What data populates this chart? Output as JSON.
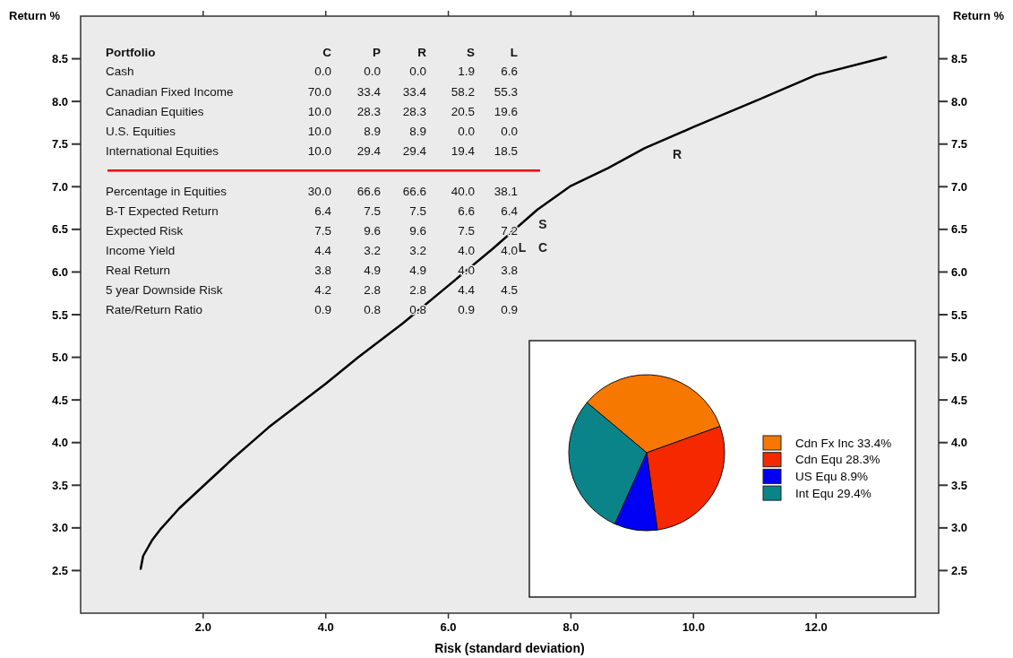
{
  "chart_data": [
    {
      "type": "line",
      "xlabel": "Risk (standard deviation)",
      "ylabel": "Return %",
      "y2label": "Return %",
      "xlim": [
        0,
        14
      ],
      "ylim": [
        2,
        9
      ],
      "y2lim": [
        2,
        9
      ],
      "xticks": [
        {
          "value": 2,
          "label": "2.0"
        },
        {
          "value": 4,
          "label": "4.0"
        },
        {
          "value": 6,
          "label": "6.0"
        },
        {
          "value": 8,
          "label": "8.0"
        },
        {
          "value": 10,
          "label": "10.0"
        },
        {
          "value": 12,
          "label": "12.0"
        }
      ],
      "yticks": [
        {
          "value": 2.5,
          "label": "2.5"
        },
        {
          "value": 3,
          "label": "3.0"
        },
        {
          "value": 3.5,
          "label": "3.5"
        },
        {
          "value": 4,
          "label": "4.0"
        },
        {
          "value": 4.5,
          "label": "4.5"
        },
        {
          "value": 5,
          "label": "5.0"
        },
        {
          "value": 5.5,
          "label": "5.5"
        },
        {
          "value": 6,
          "label": "6.0"
        },
        {
          "value": 6.5,
          "label": "6.5"
        },
        {
          "value": 7,
          "label": "7.0"
        },
        {
          "value": 7.5,
          "label": "7.5"
        },
        {
          "value": 8,
          "label": "8.0"
        },
        {
          "value": 8.5,
          "label": "8.5"
        }
      ],
      "y2ticks": [
        {
          "value": 2.5,
          "label": "2.5"
        },
        {
          "value": 3,
          "label": "3.0"
        },
        {
          "value": 3.5,
          "label": "3.5"
        },
        {
          "value": 4,
          "label": "4.0"
        },
        {
          "value": 4.5,
          "label": "4.5"
        },
        {
          "value": 5,
          "label": "5.0"
        },
        {
          "value": 5.5,
          "label": "5.5"
        },
        {
          "value": 6,
          "label": "6.0"
        },
        {
          "value": 6.5,
          "label": "6.5"
        },
        {
          "value": 7,
          "label": "7.0"
        },
        {
          "value": 7.5,
          "label": "7.5"
        },
        {
          "value": 8,
          "label": "8.0"
        },
        {
          "value": 8.5,
          "label": "8.5"
        }
      ],
      "x": [
        0.98,
        1.02,
        1.17,
        1.31,
        1.61,
        2.0,
        2.48,
        3.07,
        4.0,
        4.53,
        5.26,
        6.0,
        6.72,
        7.45,
        8.0,
        8.61,
        9.2,
        10.0,
        11.09,
        12.0,
        13.14
      ],
      "series": [
        {
          "color": "#000000",
          "values": [
            2.52,
            2.67,
            2.86,
            2.99,
            3.23,
            3.49,
            3.81,
            4.18,
            4.69,
            5.0,
            5.4,
            5.84,
            6.27,
            6.73,
            7.01,
            7.22,
            7.45,
            7.7,
            8.03,
            8.31,
            8.52
          ]
        }
      ],
      "annotations": [
        "S",
        "L",
        "C",
        "R"
      ],
      "line_style": "solid",
      "grid": false
    },
    {
      "type": "other",
      "title": "Portfolio",
      "categories": [
        "Cash",
        "Canadian Fixed Income",
        "Canadian Equities",
        "U.S. Equities",
        "International Equities",
        "Percentage in Equities",
        "B-T Expected Return",
        "Expected Risk",
        "Income Yield",
        "Real Return",
        "5 year Downside Risk",
        "Rate/Return Ratio"
      ],
      "series": [
        {
          "name": "C",
          "values": [
            0.0,
            70.0,
            10.0,
            10.0,
            10.0,
            30.0,
            6.4,
            7.5,
            4.4,
            3.8,
            4.2,
            0.9
          ],
          "value_labels": [
            "0.0",
            "70.0",
            "10.0",
            "10.0",
            "10.0",
            "30.0",
            "6.4",
            "7.5",
            "4.4",
            "3.8",
            "4.2",
            "0.9"
          ]
        },
        {
          "name": "P",
          "values": [
            0.0,
            33.4,
            28.3,
            8.9,
            29.4,
            66.6,
            7.5,
            9.6,
            3.2,
            4.9,
            2.8,
            0.8
          ],
          "value_labels": [
            "0.0",
            "33.4",
            "28.3",
            "8.9",
            "29.4",
            "66.6",
            "7.5",
            "9.6",
            "3.2",
            "4.9",
            "2.8",
            "0.8"
          ]
        },
        {
          "name": "R",
          "values": [
            0.0,
            33.4,
            28.3,
            8.9,
            29.4,
            66.6,
            7.5,
            9.6,
            3.2,
            4.9,
            2.8,
            0.8
          ],
          "value_labels": [
            "0.0",
            "33.4",
            "28.3",
            "8.9",
            "29.4",
            "66.6",
            "7.5",
            "9.6",
            "3.2",
            "4.9",
            "2.8",
            "0.8"
          ]
        },
        {
          "name": "S",
          "values": [
            1.9,
            58.2,
            20.5,
            0.0,
            19.4,
            40.0,
            6.6,
            7.5,
            4.0,
            4.0,
            4.4,
            0.9
          ],
          "value_labels": [
            "1.9",
            "58.2",
            "20.5",
            "0.0",
            "19.4",
            "40.0",
            "6.6",
            "7.5",
            "4.0",
            "4.0",
            "4.4",
            "0.9"
          ]
        },
        {
          "name": "L",
          "values": [
            6.6,
            55.3,
            19.6,
            0.0,
            18.5,
            38.1,
            6.4,
            7.2,
            4.0,
            3.8,
            4.5,
            0.9
          ],
          "value_labels": [
            "6.6",
            "55.3",
            "19.6",
            "0.0",
            "18.5",
            "38.1",
            "6.4",
            "7.2",
            "4.0",
            "3.8",
            "4.5",
            "0.9"
          ]
        }
      ]
    },
    {
      "type": "pie",
      "categories": [
        "Cdn Fx Inc 33.4%",
        "Cdn Equ 28.3%",
        "US Equ 8.9%",
        "Int Equ 29.4%"
      ],
      "values": [
        33.4,
        28.3,
        8.9,
        29.4
      ],
      "colors": [
        "#f77800",
        "#f52800",
        "#0000f5",
        "#0a8488"
      ],
      "legend": "right"
    }
  ]
}
